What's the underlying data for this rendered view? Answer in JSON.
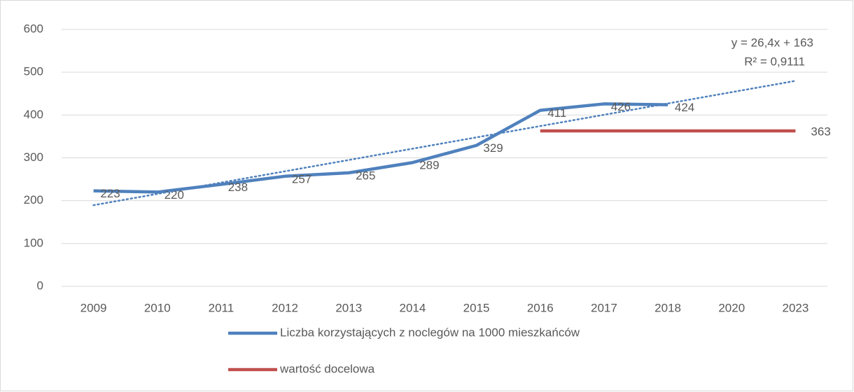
{
  "chart_data": {
    "type": "line",
    "categories": [
      "2009",
      "2010",
      "2011",
      "2012",
      "2013",
      "2014",
      "2015",
      "2016",
      "2017",
      "2018",
      "2020",
      "2023"
    ],
    "series": [
      {
        "name": "Liczba korzystających z noclegów na 1000 mieszkańców",
        "color": "#4f81bd",
        "values": [
          223,
          220,
          238,
          257,
          265,
          289,
          329,
          411,
          426,
          424,
          null,
          null
        ]
      },
      {
        "name": "wartość docelowa",
        "color": "#c0504d",
        "values": [
          null,
          null,
          null,
          null,
          null,
          null,
          null,
          363,
          363,
          363,
          363,
          363
        ],
        "value_labels": [
          null,
          null,
          null,
          null,
          null,
          null,
          null,
          null,
          null,
          null,
          null,
          "363"
        ]
      }
    ],
    "trendline": {
      "slope": 26.4,
      "intercept": 163,
      "color": "#4f81bd",
      "equation": "y = 26,4x + 163",
      "r_squared": "R² = 0,9111"
    },
    "ylim": [
      0,
      600
    ],
    "yticks": [
      0,
      100,
      200,
      300,
      400,
      500,
      600
    ],
    "grid": true
  }
}
